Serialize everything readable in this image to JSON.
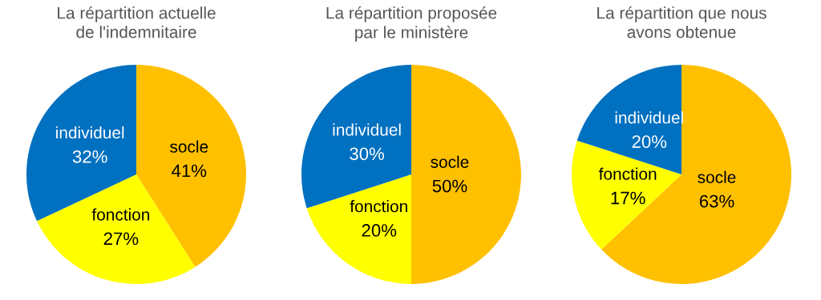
{
  "chart_data": [
    {
      "type": "pie",
      "title": "La répartition actuelle\nde l'indemnitaire",
      "categories": [
        "socle",
        "fonction",
        "individuel"
      ],
      "values": [
        41,
        27,
        32
      ],
      "colors": [
        "#ffc000",
        "#ffff00",
        "#0070c0"
      ],
      "value_labels": [
        "41%",
        "27%",
        "32%"
      ]
    },
    {
      "type": "pie",
      "title": "La répartition proposée\npar le ministère",
      "categories": [
        "socle",
        "fonction",
        "individuel"
      ],
      "values": [
        50,
        20,
        30
      ],
      "colors": [
        "#ffc000",
        "#ffff00",
        "#0070c0"
      ],
      "value_labels": [
        "50%",
        "20%",
        "30%"
      ]
    },
    {
      "type": "pie",
      "title": "La répartition que nous\navons obtenue",
      "categories": [
        "socle",
        "fonction",
        "individuel"
      ],
      "values": [
        63,
        17,
        20
      ],
      "colors": [
        "#ffc000",
        "#ffff00",
        "#0070c0"
      ],
      "value_labels": [
        "63%",
        "17%",
        "20%"
      ]
    }
  ]
}
